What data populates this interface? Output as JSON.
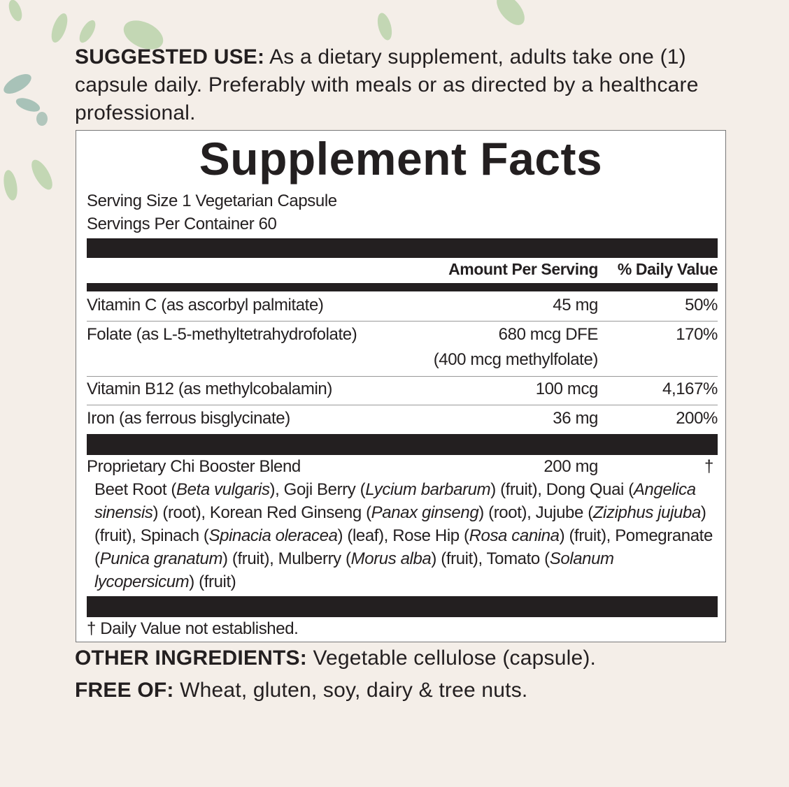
{
  "suggested_use": {
    "label": "SUGGESTED USE:",
    "text": " As a dietary supplement, adults take one (1) capsule daily. Preferably with meals or as directed by a healthcare professional."
  },
  "facts": {
    "title": "Supplement Facts",
    "serving_size": "Serving Size 1 Vegetarian Capsule",
    "servings_per_container": "Servings Per Container 60",
    "header": {
      "amount": "Amount Per Serving",
      "daily_value": "% Daily Value"
    },
    "rows": [
      {
        "name": "Vitamin C (as ascorbyl palmitate)",
        "amount": "45 mg",
        "dv": "50%"
      },
      {
        "name": "Folate (as L-5-methyltetrahydrofolate)",
        "amount": "680 mcg DFE",
        "amount2": "(400 mcg methylfolate)",
        "dv": "170%"
      },
      {
        "name": "Vitamin B12 (as methylcobalamin)",
        "amount": "100 mcg",
        "dv": "4,167%"
      },
      {
        "name": "Iron (as ferrous bisglycinate)",
        "amount": "36 mg",
        "dv": "200%"
      }
    ],
    "blend": {
      "name": "Proprietary Chi Booster Blend",
      "amount": "200 mg",
      "dv": "†",
      "ingredients": [
        {
          "t": "Beet Root ("
        },
        {
          "t": "Beta vulgaris",
          "i": true
        },
        {
          "t": "), Goji Berry ("
        },
        {
          "t": "Lycium barbarum",
          "i": true
        },
        {
          "t": ") (fruit), Dong Quai ("
        },
        {
          "t": "Angelica sinensis",
          "i": true
        },
        {
          "t": ") (root), Korean Red Ginseng ("
        },
        {
          "t": "Panax ginseng",
          "i": true
        },
        {
          "t": ") (root), Jujube ("
        },
        {
          "t": "Ziziphus jujuba",
          "i": true
        },
        {
          "t": ") (fruit), Spinach ("
        },
        {
          "t": "Spinacia oleracea",
          "i": true
        },
        {
          "t": ") (leaf), Rose Hip ("
        },
        {
          "t": "Rosa canina",
          "i": true
        },
        {
          "t": ") (fruit), Pomegranate ("
        },
        {
          "t": "Punica granatum",
          "i": true
        },
        {
          "t": ") (fruit), Mulberry ("
        },
        {
          "t": "Morus alba",
          "i": true
        },
        {
          "t": ") (fruit), Tomato ("
        },
        {
          "t": "Solanum lycopersicum",
          "i": true
        },
        {
          "t": ") (fruit)"
        }
      ]
    },
    "footnote": "† Daily Value not established."
  },
  "other_ingredients": {
    "label": "OTHER INGREDIENTS:",
    "text": " Vegetable cellulose (capsule)."
  },
  "free_of": {
    "label": "FREE OF:",
    "text": " Wheat, gluten, soy, dairy & tree nuts."
  },
  "colors": {
    "background": "#f4eee8",
    "ink": "#231f20",
    "leaf": "#a9c79a"
  }
}
